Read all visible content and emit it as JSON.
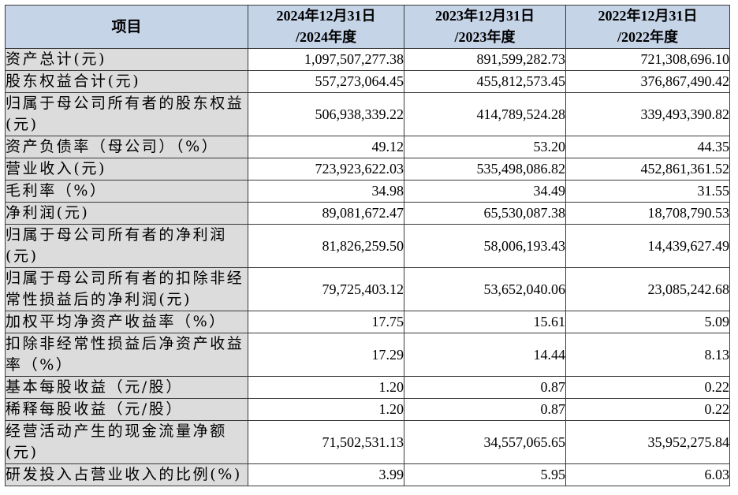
{
  "header": {
    "item": "项目",
    "columns": [
      {
        "line1": "2024年12月31日",
        "line2": "/2024年度"
      },
      {
        "line1": "2023年12月31日",
        "line2": "/2023年度"
      },
      {
        "line1": "2022年12月31日",
        "line2": "/2022年度"
      }
    ]
  },
  "rows": [
    {
      "label": "资产总计(元)",
      "values": [
        "1,097,507,277.38",
        "891,599,282.73",
        "721,308,696.10"
      ]
    },
    {
      "label": "股东权益合计(元)",
      "values": [
        "557,273,064.45",
        "455,812,573.45",
        "376,867,490.42"
      ]
    },
    {
      "label": "归属于母公司所有者的股东权益(元)",
      "values": [
        "506,938,339.22",
        "414,789,524.28",
        "339,493,390.82"
      ]
    },
    {
      "label": "资产负债率（母公司）（%）",
      "values": [
        "49.12",
        "53.20",
        "44.35"
      ]
    },
    {
      "label": "营业收入(元)",
      "values": [
        "723,923,622.03",
        "535,498,086.82",
        "452,861,361.52"
      ]
    },
    {
      "label": "毛利率（%）",
      "values": [
        "34.98",
        "34.49",
        "31.55"
      ]
    },
    {
      "label": "净利润(元)",
      "values": [
        "89,081,672.47",
        "65,530,087.38",
        "18,708,790.53"
      ]
    },
    {
      "label": "归属于母公司所有者的净利润(元)",
      "values": [
        "81,826,259.50",
        "58,006,193.43",
        "14,439,627.49"
      ]
    },
    {
      "label": "归属于母公司所有者的扣除非经常性损益后的净利润(元)",
      "values": [
        "79,725,403.12",
        "53,652,040.06",
        "23,085,242.68"
      ]
    },
    {
      "label": "加权平均净资产收益率（%）",
      "values": [
        "17.75",
        "15.61",
        "5.09"
      ]
    },
    {
      "label": "扣除非经常性损益后净资产收益率（%）",
      "values": [
        "17.29",
        "14.44",
        "8.13"
      ]
    },
    {
      "label": "基本每股收益（元/股）",
      "values": [
        "1.20",
        "0.87",
        "0.22"
      ]
    },
    {
      "label": "稀释每股收益（元/股）",
      "values": [
        "1.20",
        "0.87",
        "0.22"
      ]
    },
    {
      "label": "经营活动产生的现金流量净额(元)",
      "values": [
        "71,502,531.13",
        "34,557,065.65",
        "35,952,275.84"
      ]
    },
    {
      "label": "研发投入占营业收入的比例(%)",
      "values": [
        "3.99",
        "5.95",
        "6.03"
      ]
    }
  ],
  "colors": {
    "header_bg": "#c6d4e8",
    "label_bg": "#dcdcdc",
    "cell_bg": "#ffffff",
    "border": "#3a3a3a"
  }
}
